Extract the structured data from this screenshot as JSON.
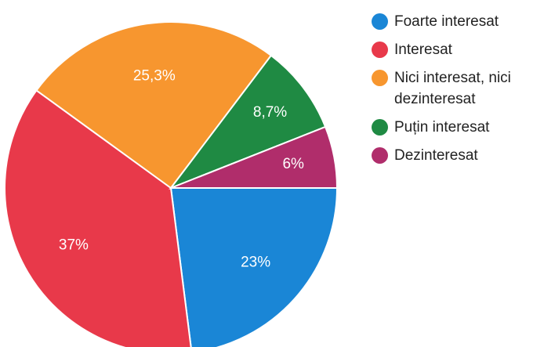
{
  "chart_data": {
    "type": "pie",
    "categories": [
      "Foarte interesat",
      "Interesat",
      "Nici interesat, nici dezinteresat",
      "Puțin interesat",
      "Dezinteresat"
    ],
    "values": [
      23,
      37,
      25.3,
      8.7,
      6
    ],
    "value_labels": [
      "23%",
      "37%",
      "25,3%",
      "8,7%",
      "6%"
    ],
    "colors": [
      "#1a86d6",
      "#e8394a",
      "#f7962f",
      "#1f8a43",
      "#b02d6b"
    ],
    "legend": "right"
  }
}
